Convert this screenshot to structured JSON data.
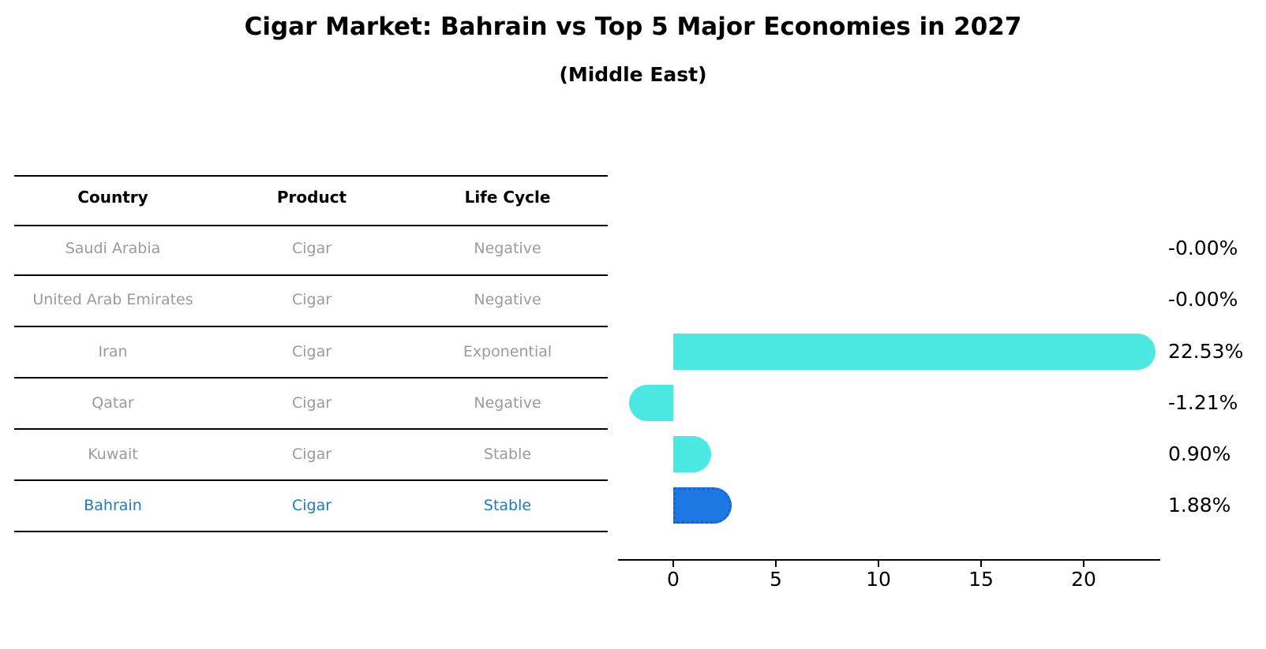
{
  "title": "Cigar Market: Bahrain vs Top 5 Major Economies in 2027",
  "subtitle": "(Middle East)",
  "table": {
    "headers": [
      "Country",
      "Product",
      "Life Cycle"
    ],
    "rows": [
      {
        "country": "Saudi Arabia",
        "product": "Cigar",
        "life_cycle": "Negative",
        "highlight": false
      },
      {
        "country": "United Arab Emirates",
        "product": "Cigar",
        "life_cycle": "Negative",
        "highlight": false
      },
      {
        "country": "Iran",
        "product": "Cigar",
        "life_cycle": "Exponential",
        "highlight": false
      },
      {
        "country": "Qatar",
        "product": "Cigar",
        "life_cycle": "Negative",
        "highlight": false
      },
      {
        "country": "Kuwait",
        "product": "Cigar",
        "life_cycle": "Stable",
        "highlight": false
      },
      {
        "country": "Bahrain",
        "product": "Cigar",
        "life_cycle": "Stable",
        "highlight": true
      }
    ]
  },
  "chart_data": {
    "type": "bar",
    "orientation": "horizontal",
    "title": "Cigar Market: Bahrain vs Top 5 Major Economies in 2027",
    "subtitle": "(Middle East)",
    "categories": [
      "Saudi Arabia",
      "United Arab Emirates",
      "Iran",
      "Qatar",
      "Kuwait",
      "Bahrain"
    ],
    "values": [
      -0.0,
      -0.0,
      22.53,
      -1.21,
      0.9,
      1.88
    ],
    "value_labels": [
      "-0.00%",
      "-0.00%",
      "22.53%",
      "-1.21%",
      "0.90%",
      "1.88%"
    ],
    "unit": "percent",
    "xlabel": "",
    "ylabel": "",
    "x_ticks": [
      0,
      5,
      10,
      15,
      20
    ],
    "xlim": [
      -2.7,
      23.7
    ],
    "grid": false,
    "legend": "none",
    "bar_color": "#4BE9E2",
    "highlight_color": "#1E78E4",
    "highlight_index": 5,
    "highlight_style": "dotted-border"
  },
  "colors": {
    "bar_cyan": "#4BE9E2",
    "bar_blue": "#1E78E4",
    "highlight_text_blue": "#1f7ac4",
    "row_text_gray": "#9b9b9b",
    "axis_black": "#000000"
  }
}
